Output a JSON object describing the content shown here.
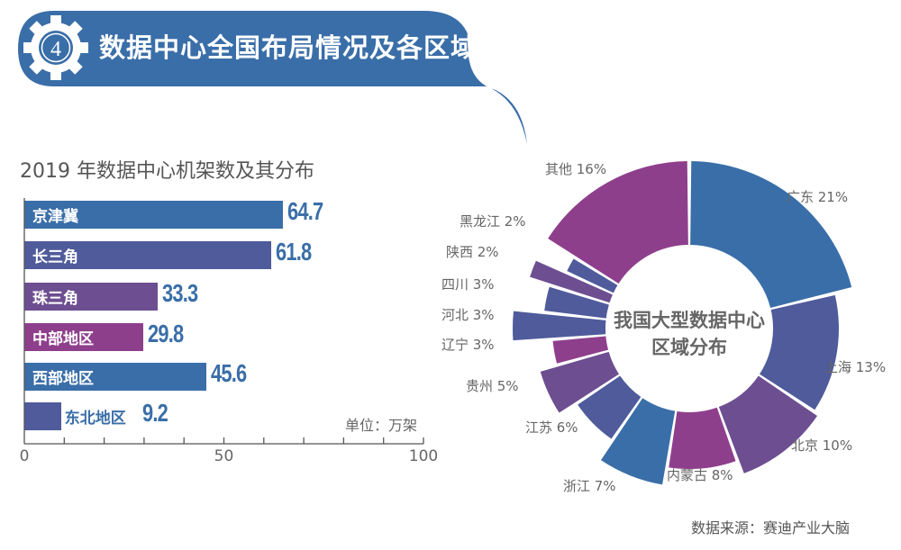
{
  "header": {
    "badge_number": "4",
    "title": "数据中心全国布局情况及各区域占比"
  },
  "chart_data": [
    {
      "type": "bar",
      "title": "2019 年数据中心机架数及其分布",
      "unit_label": "单位：万架",
      "categories": [
        "京津冀",
        "长三角",
        "珠三角",
        "中部地区",
        "西部地区",
        "东北地区"
      ],
      "values": [
        64.7,
        61.8,
        33.3,
        29.8,
        45.6,
        9.2
      ],
      "value_labels": [
        "64.7",
        "61.8",
        "33.3",
        "29.8",
        "45.6",
        "9.2"
      ],
      "colors": [
        "#3a6ea8",
        "#4f5b9b",
        "#6d4e91",
        "#8e3f8c",
        "#3a6ea8",
        "#4f5b9b"
      ],
      "xlim": [
        0,
        100
      ],
      "xticks": [
        "0",
        "50",
        "100"
      ],
      "orientation": "horizontal"
    },
    {
      "type": "pie",
      "title": "我国大型数据中心区域分布",
      "title_lines": [
        "我国大型数据中心",
        "区域分布"
      ],
      "categories": [
        "广东",
        "上海",
        "北京",
        "内蒙古",
        "浙江",
        "江苏",
        "贵州",
        "辽宁",
        "河北",
        "四川",
        "陕西",
        "黑龙江",
        "其他"
      ],
      "values": [
        21,
        13,
        10,
        8,
        7,
        6,
        5,
        3,
        3,
        3,
        2,
        2,
        16
      ],
      "labels": [
        "广东 21%",
        "上海 13%",
        "北京 10%",
        "内蒙古 8%",
        "浙江 7%",
        "江苏 6%",
        "贵州 5%",
        "辽宁 3%",
        "河北 3%",
        "四川 3%",
        "陕西 2%",
        "黑龙江 2%",
        "其他 16%"
      ],
      "colors": [
        "#3a6ea8",
        "#4f5b9b",
        "#6d4e91",
        "#8e3f8c",
        "#3a6ea8",
        "#4f5b9b",
        "#6d4e91",
        "#8e3f8c",
        "#4f5b9b",
        "#4f5b9b",
        "#6d4e91",
        "#4f5b9b",
        "#8e3f8c"
      ],
      "style": "donut"
    }
  ],
  "source": "数据来源：赛迪产业大脑"
}
